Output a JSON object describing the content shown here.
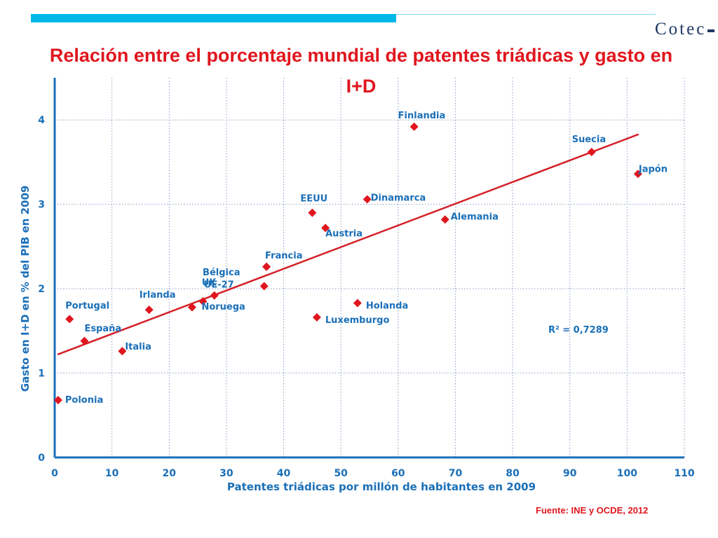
{
  "header": {
    "logo_text": "Cotec",
    "title": "Relación entre el porcentaje mundial de patentes triádicas y gasto en I+D"
  },
  "footer": {
    "source": "Fuente: INE y OCDE, 2012"
  },
  "colors": {
    "accent_bar": "#00b8e8",
    "title": "#e0161e",
    "axis": "#1a6fb8",
    "points": "#e0161e",
    "trendline": "#d42027"
  },
  "chart_data": {
    "type": "scatter",
    "xlabel": "Patentes triádicas por millón de habitantes en 2009",
    "ylabel": "Gasto en I+D en % del PIB en 2009",
    "xlim": [
      0,
      110
    ],
    "ylim": [
      0,
      4.5
    ],
    "xticks": [
      0,
      10,
      20,
      30,
      40,
      50,
      60,
      70,
      80,
      90,
      100,
      110
    ],
    "yticks": [
      0,
      1,
      2,
      3,
      4
    ],
    "grid": true,
    "legend": "none",
    "points": [
      {
        "label": "Polonia",
        "x": 0.6,
        "y": 0.68
      },
      {
        "label": "Portugal",
        "x": 2.6,
        "y": 1.64
      },
      {
        "label": "España",
        "x": 5.2,
        "y": 1.38
      },
      {
        "label": "Italia",
        "x": 11.8,
        "y": 1.26
      },
      {
        "label": "Irlanda",
        "x": 16.5,
        "y": 1.75
      },
      {
        "label": "",
        "x": 24.0,
        "y": 1.78
      },
      {
        "label": "Noruega",
        "x": 25.9,
        "y": 1.85
      },
      {
        "label": "UK",
        "x": 27.9,
        "y": 1.92
      },
      {
        "label": "UE-27",
        "x": 36.6,
        "y": 2.03
      },
      {
        "label": "Bélgica",
        "x": 37.0,
        "y": 2.26
      },
      {
        "label": "Francia",
        "x": 37.0,
        "y": 2.26
      },
      {
        "label": "EEUU",
        "x": 45.0,
        "y": 2.9
      },
      {
        "label": "Austria",
        "x": 47.3,
        "y": 2.72
      },
      {
        "label": "Luxemburgo",
        "x": 45.8,
        "y": 1.66
      },
      {
        "label": "Holanda",
        "x": 52.9,
        "y": 1.83
      },
      {
        "label": "Dinamarca",
        "x": 54.6,
        "y": 3.06
      },
      {
        "label": "Finlandia",
        "x": 62.8,
        "y": 3.92
      },
      {
        "label": "Alemania",
        "x": 68.2,
        "y": 2.82
      },
      {
        "label": "Suecia",
        "x": 93.8,
        "y": 3.62
      },
      {
        "label": "Japón",
        "x": 101.9,
        "y": 3.36
      }
    ],
    "trendline": {
      "x": [
        0.5,
        102
      ],
      "y": [
        1.22,
        3.83
      ]
    },
    "annotation": "R² = 0,7289"
  }
}
